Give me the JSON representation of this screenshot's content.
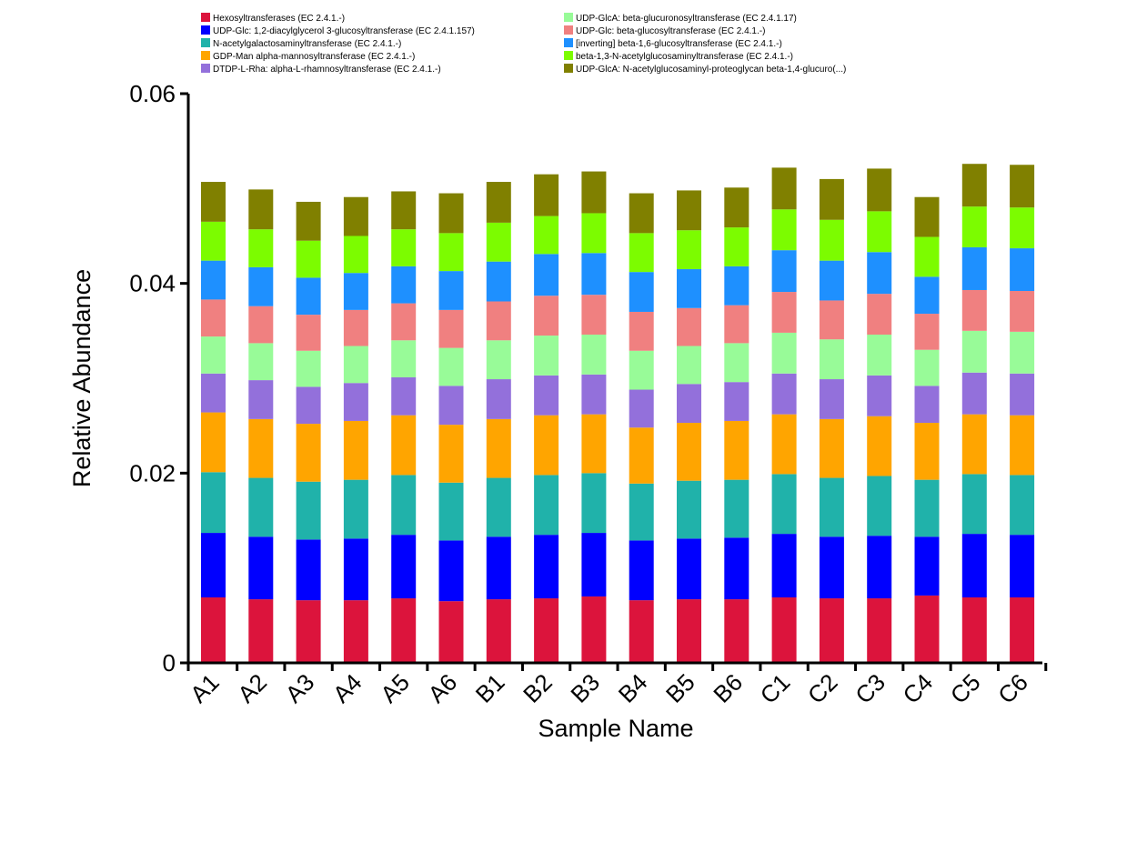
{
  "chart_data": {
    "type": "bar",
    "stacked": true,
    "title": "",
    "xlabel": "Sample Name",
    "ylabel": "Relative Abundance",
    "ylim": [
      0,
      0.06
    ],
    "yticks": [
      0,
      0.02,
      0.04,
      0.06
    ],
    "ytick_labels": [
      "0",
      "0.02",
      "0.04",
      "0.06"
    ],
    "legend_position": "top",
    "categories": [
      "A1",
      "A2",
      "A3",
      "A4",
      "A5",
      "A6",
      "B1",
      "B2",
      "B3",
      "B4",
      "B5",
      "B6",
      "C1",
      "C2",
      "C3",
      "C4",
      "C5",
      "C6"
    ],
    "series": [
      {
        "name": "Hexosyltransferases (EC 2.4.1.-)",
        "color": "#DC143C",
        "values": [
          0.0069,
          0.0067,
          0.0066,
          0.0066,
          0.0068,
          0.0065,
          0.0067,
          0.0068,
          0.007,
          0.0066,
          0.0067,
          0.0067,
          0.0069,
          0.0068,
          0.0068,
          0.0071,
          0.0069,
          0.0069
        ]
      },
      {
        "name": "UDP-Glc: 1,2-diacylglycerol 3-glucosyltransferase (EC 2.4.1.157)",
        "color": "#0000FF",
        "values": [
          0.0068,
          0.0066,
          0.0064,
          0.0065,
          0.0067,
          0.0064,
          0.0066,
          0.0067,
          0.0067,
          0.0063,
          0.0064,
          0.0065,
          0.0067,
          0.0065,
          0.0066,
          0.0062,
          0.0067,
          0.0066
        ]
      },
      {
        "name": "N-acetylgalactosaminyltransferase (EC 2.4.1.-)",
        "color": "#20B2AA",
        "values": [
          0.0064,
          0.0062,
          0.0061,
          0.0062,
          0.0063,
          0.0061,
          0.0062,
          0.0063,
          0.0063,
          0.006,
          0.0061,
          0.0061,
          0.0063,
          0.0062,
          0.0063,
          0.006,
          0.0063,
          0.0063
        ]
      },
      {
        "name": "GDP-Man alpha-mannosyltransferase (EC 2.4.1.-)",
        "color": "#FFA500",
        "values": [
          0.0063,
          0.0062,
          0.0061,
          0.0062,
          0.0063,
          0.0061,
          0.0062,
          0.0063,
          0.0062,
          0.0059,
          0.0061,
          0.0062,
          0.0063,
          0.0062,
          0.0063,
          0.006,
          0.0063,
          0.0063
        ]
      },
      {
        "name": "DTDP-L-Rha: alpha-L-rhamnosyltransferase (EC 2.4.1.-)",
        "color": "#9370DB",
        "values": [
          0.0041,
          0.0041,
          0.0039,
          0.004,
          0.004,
          0.0041,
          0.0042,
          0.0042,
          0.0042,
          0.004,
          0.0041,
          0.0041,
          0.0043,
          0.0042,
          0.0043,
          0.0039,
          0.0044,
          0.0044
        ]
      },
      {
        "name": "UDP-GlcA: beta-glucuronosyltransferase (EC 2.4.1.17)",
        "color": "#98FB98",
        "values": [
          0.0039,
          0.0039,
          0.0038,
          0.0039,
          0.0039,
          0.004,
          0.0041,
          0.0042,
          0.0042,
          0.0041,
          0.004,
          0.0041,
          0.0043,
          0.0042,
          0.0043,
          0.0038,
          0.0044,
          0.0044
        ]
      },
      {
        "name": "UDP-Glc: beta-glucosyltransferase (EC 2.4.1.-)",
        "color": "#F08080",
        "values": [
          0.0039,
          0.0039,
          0.0038,
          0.0038,
          0.0039,
          0.004,
          0.0041,
          0.0042,
          0.0042,
          0.0041,
          0.004,
          0.004,
          0.0043,
          0.0041,
          0.0043,
          0.0038,
          0.0043,
          0.0043
        ]
      },
      {
        "name": "[inverting] beta-1,6-glucosyltransferase (EC 2.4.1.-)",
        "color": "#1E90FF",
        "values": [
          0.0041,
          0.0041,
          0.0039,
          0.0039,
          0.0039,
          0.0041,
          0.0042,
          0.0044,
          0.0044,
          0.0042,
          0.0041,
          0.0041,
          0.0044,
          0.0042,
          0.0044,
          0.0039,
          0.0045,
          0.0045
        ]
      },
      {
        "name": "beta-1,3-N-acetylglucosaminyltransferase (EC 2.4.1.-)",
        "color": "#7CFC00",
        "values": [
          0.0041,
          0.004,
          0.0039,
          0.0039,
          0.0039,
          0.004,
          0.0041,
          0.004,
          0.0042,
          0.0041,
          0.0041,
          0.0041,
          0.0043,
          0.0043,
          0.0043,
          0.0042,
          0.0043,
          0.0043
        ]
      },
      {
        "name": "UDP-GlcA: N-acetylglucosaminyl-proteoglycan beta-1,4-glucuro(...)",
        "color": "#808000",
        "values": [
          0.0042,
          0.0042,
          0.0041,
          0.0041,
          0.004,
          0.0042,
          0.0043,
          0.0044,
          0.0044,
          0.0042,
          0.0042,
          0.0042,
          0.0044,
          0.0043,
          0.0045,
          0.0042,
          0.0045,
          0.0045
        ]
      }
    ]
  }
}
